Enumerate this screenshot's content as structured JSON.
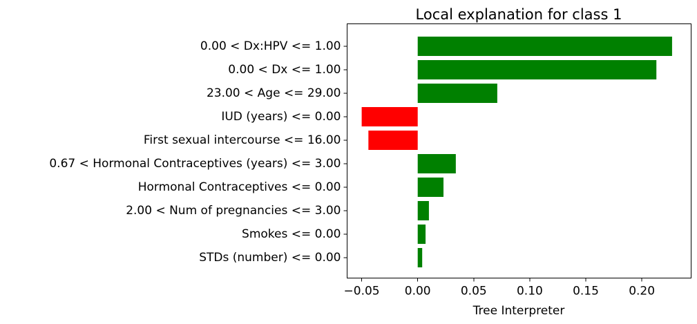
{
  "chart_data": {
    "type": "bar",
    "orientation": "horizontal",
    "title": "Local explanation for class 1",
    "xlabel": "Tree Interpreter",
    "ylabel": "",
    "xlim": [
      -0.063,
      0.244
    ],
    "grid": false,
    "xticks": [
      -0.05,
      0.0,
      0.05,
      0.1,
      0.15,
      0.2
    ],
    "xtick_labels": [
      "−0.05",
      "0.00",
      "0.05",
      "0.10",
      "0.15",
      "0.20"
    ],
    "categories": [
      "0.00 < Dx:HPV <= 1.00",
      "0.00 < Dx <= 1.00",
      "23.00 < Age <= 29.00",
      "IUD (years) <= 0.00",
      "First sexual intercourse <= 16.00",
      "0.67 < Hormonal Contraceptives (years) <= 3.00",
      "Hormonal Contraceptives <= 0.00",
      "2.00 < Num of pregnancies <= 3.00",
      "Smokes <= 0.00",
      "STDs (number) <= 0.00"
    ],
    "values": [
      0.227,
      0.213,
      0.071,
      -0.05,
      -0.044,
      0.034,
      0.023,
      0.01,
      0.007,
      0.004
    ],
    "colors": {
      "positive": "#008000",
      "negative": "#ff0000"
    }
  }
}
